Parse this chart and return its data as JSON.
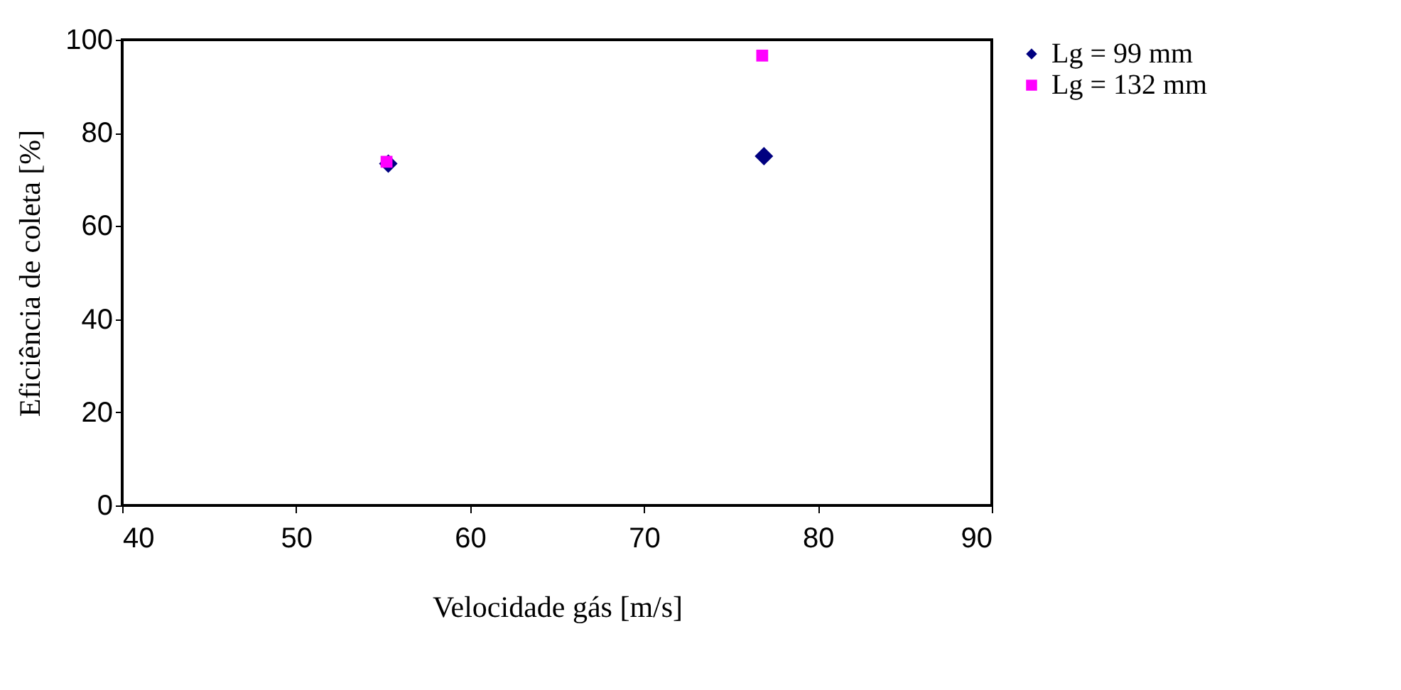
{
  "chart_data": {
    "type": "scatter",
    "xlabel": "Velocidade gás [m/s]",
    "ylabel": "Eficiência de coleta  [%]",
    "xlim": [
      40,
      90
    ],
    "xticks": [
      40,
      50,
      60,
      70,
      80,
      90
    ],
    "ylim": [
      0,
      100
    ],
    "yticks": [
      0,
      20,
      40,
      60,
      80,
      100
    ],
    "grid": false,
    "legend": "right",
    "series": [
      {
        "name": "Lg = 99 mm",
        "color": "#000080",
        "marker": "diamond",
        "x": [
          55.3,
          76.9
        ],
        "values": [
          73.4,
          75.0
        ]
      },
      {
        "name": "Lg = 132 mm",
        "color": "#ff00ff",
        "marker": "square",
        "x": [
          55.2,
          76.8
        ],
        "values": [
          73.8,
          96.6
        ]
      }
    ]
  }
}
